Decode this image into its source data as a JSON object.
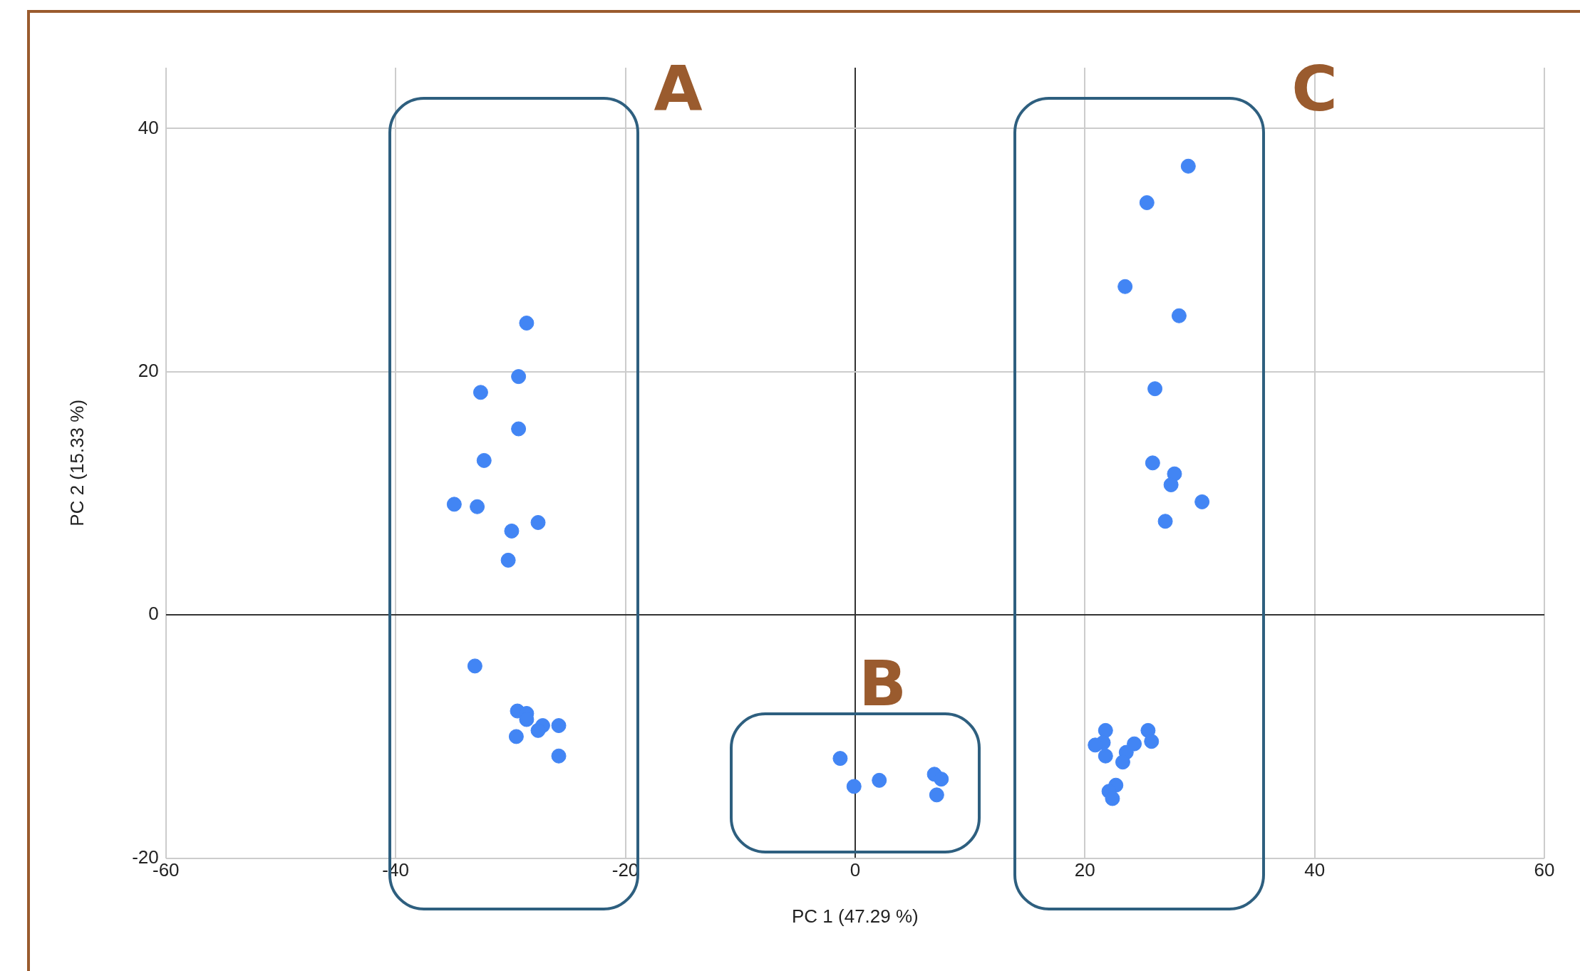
{
  "chart_data": {
    "type": "scatter",
    "xlabel": "PC 1 (47.29 %)",
    "ylabel": "PC 2 (15.33 %)",
    "x": [
      -28.6,
      -29.3,
      -32.6,
      -29.3,
      -32.3,
      -34.9,
      -32.9,
      -29.9,
      -27.6,
      -30.2,
      -33.1,
      -29.4,
      -28.6,
      -28.6,
      -27.2,
      -27.6,
      -25.8,
      -29.5,
      -25.8,
      -1.3,
      -0.1,
      2.1,
      6.9,
      7.5,
      7.1,
      29.0,
      25.4,
      23.5,
      28.2,
      26.1,
      25.9,
      27.8,
      27.5,
      30.2,
      27.0,
      21.8,
      25.5,
      21.6,
      20.9,
      25.8,
      24.3,
      23.8,
      23.6,
      21.8,
      23.3,
      22.7,
      22.1,
      22.4
    ],
    "values": [
      24.0,
      19.6,
      18.3,
      15.3,
      12.7,
      9.1,
      8.9,
      6.9,
      7.6,
      4.5,
      -4.2,
      -7.9,
      -8.1,
      -8.6,
      -9.1,
      -9.5,
      -9.1,
      -10.0,
      -11.6,
      -11.8,
      -14.1,
      -13.6,
      -13.1,
      -13.5,
      -14.8,
      36.9,
      33.9,
      27.0,
      24.6,
      18.6,
      12.5,
      11.6,
      10.7,
      9.3,
      7.7,
      -9.5,
      -9.5,
      -10.5,
      -10.7,
      -10.4,
      -10.6,
      null,
      -11.3,
      -11.6,
      -12.1,
      -14.0,
      -14.5,
      -15.1
    ],
    "color": "#4285f4",
    "marker": "circle",
    "xlim": [
      -60,
      60
    ],
    "ylim": [
      -20,
      45
    ],
    "xticks": [
      -60,
      -40,
      -20,
      0,
      20,
      40,
      60
    ],
    "yticks": [
      -20,
      0,
      20,
      40
    ],
    "grid": true,
    "annotations": [
      "A",
      "B",
      "C"
    ]
  }
}
